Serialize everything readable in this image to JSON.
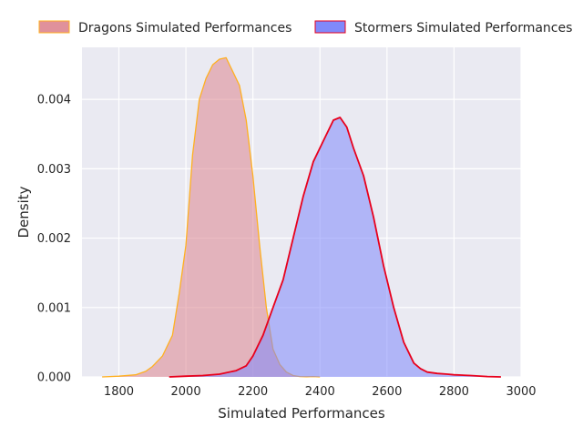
{
  "chart_data": {
    "type": "area",
    "title": "",
    "xlabel": "Simulated Performances",
    "ylabel": "Density",
    "xlim": [
      1690,
      3000
    ],
    "ylim": [
      0,
      0.00475
    ],
    "x_ticks": [
      1800,
      2000,
      2200,
      2400,
      2600,
      2800,
      3000
    ],
    "x_tick_labels": [
      "1800",
      "2000",
      "2200",
      "2400",
      "2600",
      "2800",
      "3000"
    ],
    "y_ticks": [
      0,
      0.001,
      0.002,
      0.003,
      0.004
    ],
    "y_tick_labels": [
      "0.000",
      "0.001",
      "0.002",
      "0.003",
      "0.004"
    ],
    "grid": true,
    "legend_placement": "top",
    "series": [
      {
        "name": "Dragons Simulated Performances",
        "fill_color": "#dd8590",
        "line_color": "#ffb020",
        "x": [
          1750,
          1800,
          1850,
          1880,
          1900,
          1930,
          1960,
          1980,
          2000,
          2020,
          2040,
          2060,
          2080,
          2100,
          2120,
          2140,
          2160,
          2180,
          2200,
          2220,
          2240,
          2260,
          2280,
          2300,
          2320,
          2340,
          2360,
          2380,
          2400
        ],
        "y": [
          0,
          1e-05,
          3e-05,
          8e-05,
          0.00015,
          0.0003,
          0.0006,
          0.0012,
          0.0019,
          0.0032,
          0.004,
          0.0043,
          0.0045,
          0.00458,
          0.0046,
          0.0044,
          0.0042,
          0.0037,
          0.0029,
          0.0019,
          0.001,
          0.0004,
          0.00018,
          7e-05,
          2e-05,
          5e-06,
          3e-06,
          5e-06,
          0
        ]
      },
      {
        "name": "Stormers Simulated Performances",
        "fill_color": "#8089fb",
        "line_color": "#e8001c",
        "x": [
          1950,
          2000,
          2050,
          2100,
          2150,
          2180,
          2200,
          2230,
          2260,
          2290,
          2320,
          2350,
          2380,
          2410,
          2440,
          2460,
          2480,
          2500,
          2530,
          2560,
          2590,
          2620,
          2650,
          2680,
          2700,
          2720,
          2750,
          2780,
          2800,
          2850,
          2900,
          2940
        ],
        "y": [
          0,
          1e-05,
          2e-05,
          4e-05,
          9e-05,
          0.00016,
          0.0003,
          0.0006,
          0.001,
          0.0014,
          0.002,
          0.0026,
          0.0031,
          0.0034,
          0.0037,
          0.00374,
          0.0036,
          0.0033,
          0.0029,
          0.0023,
          0.0016,
          0.001,
          0.0005,
          0.0002,
          0.00012,
          7e-05,
          5e-05,
          4e-05,
          3e-05,
          2e-05,
          5e-06,
          0
        ]
      }
    ]
  }
}
